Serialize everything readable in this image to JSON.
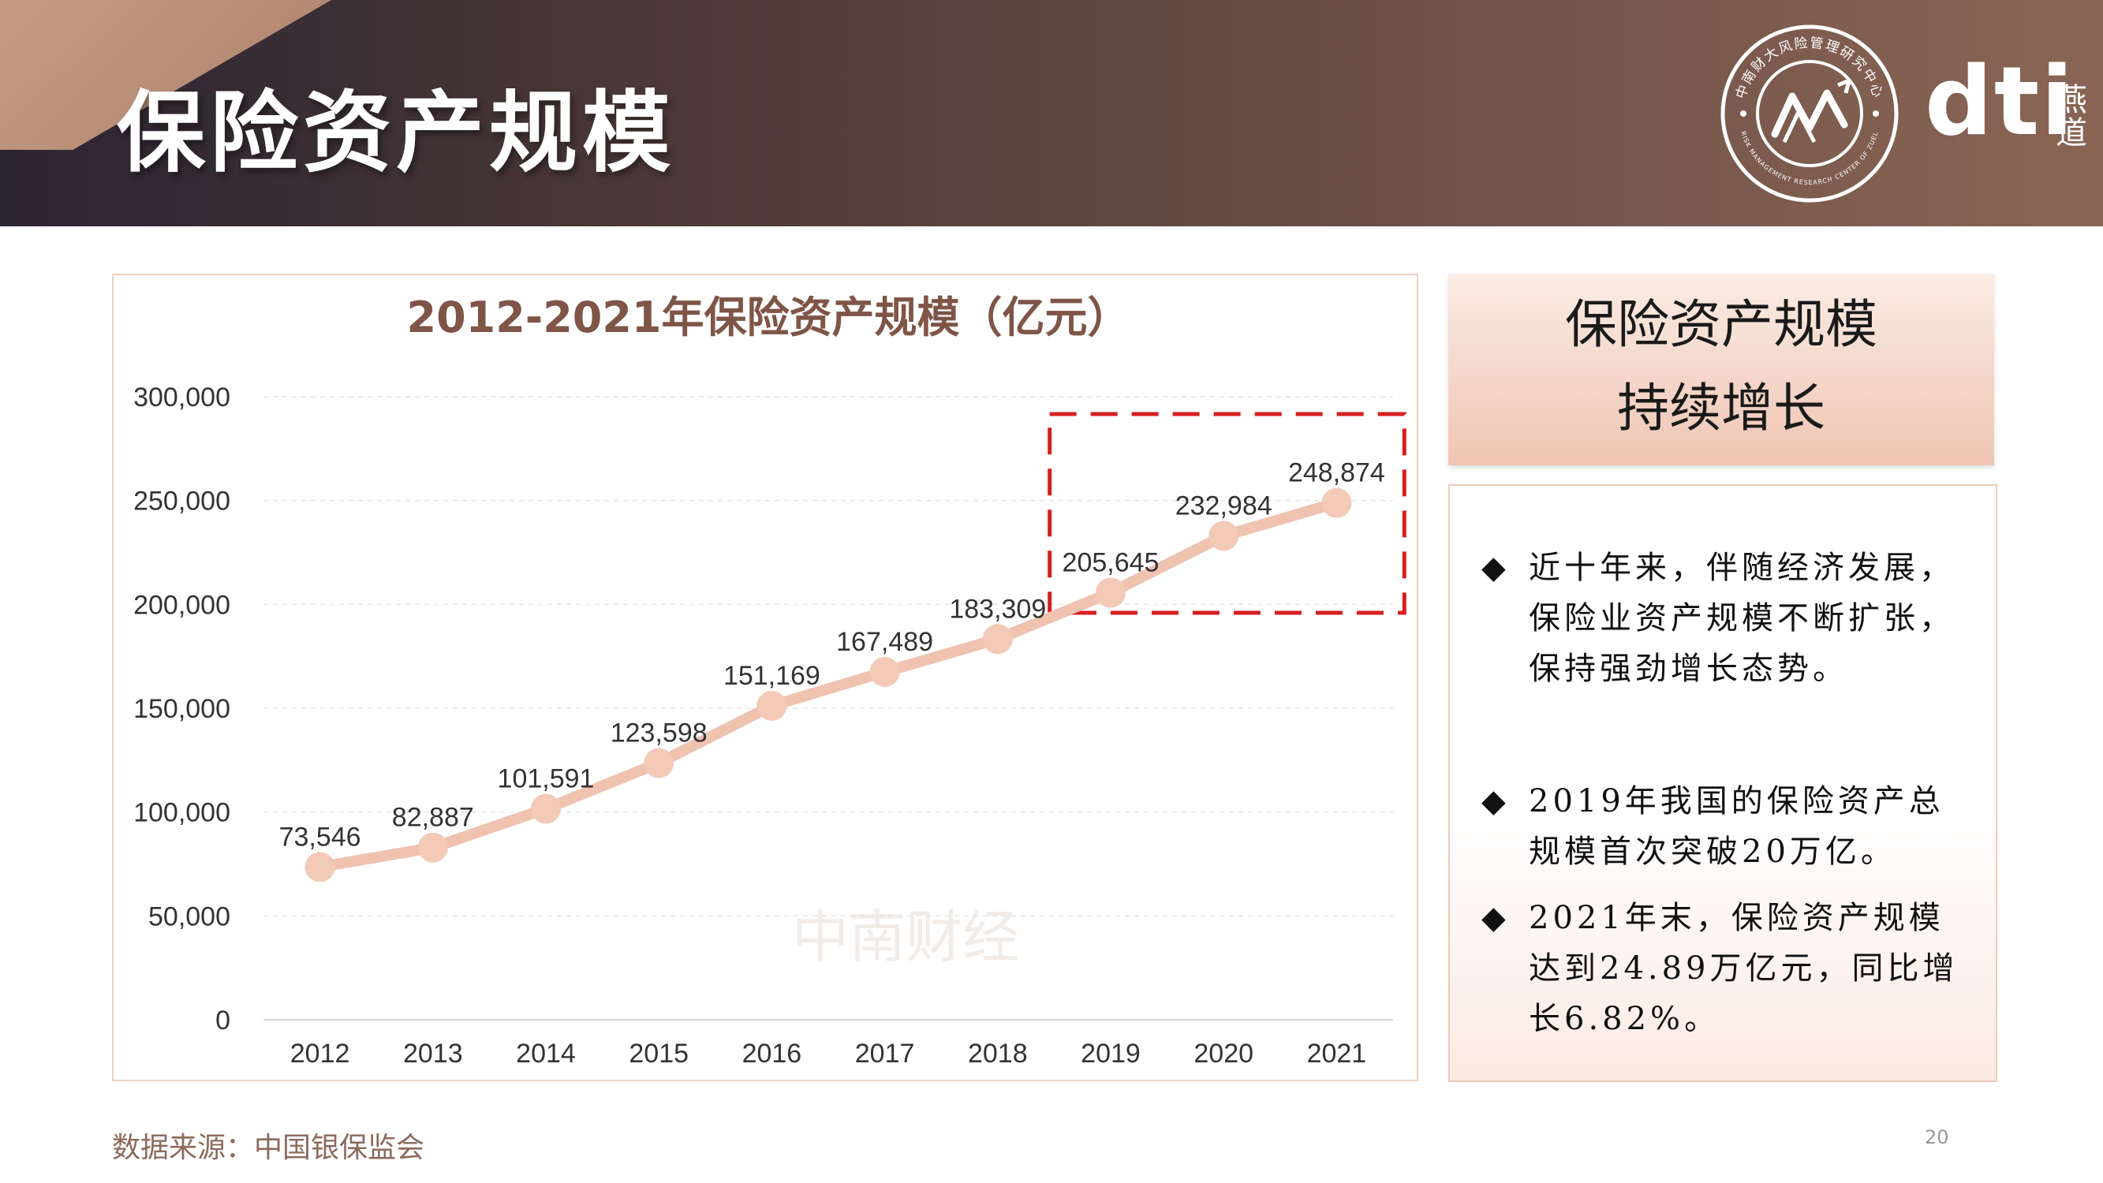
{
  "header": {
    "title": "保险资产规模",
    "brand": "dti",
    "brand_cn": "燕道",
    "seal_text": "中南财大风险管理研究中心",
    "seal_text_en": "RISK MANAGEMENT RESEARCH CENTER OF ZUEL"
  },
  "colors": {
    "line": "#f0c2b0",
    "marker": "#f3c9b8",
    "highlight_box": "#d81e1e",
    "title_text": "#7f5547",
    "header_dark": "#2b2431",
    "header_warm": "#8a6555"
  },
  "chart_data": {
    "type": "line",
    "title": "2012-2021年保险资产规模（亿元）",
    "categories": [
      "2012",
      "2013",
      "2014",
      "2015",
      "2016",
      "2017",
      "2018",
      "2019",
      "2020",
      "2021"
    ],
    "values": [
      73546,
      82887,
      101591,
      123598,
      151169,
      167489,
      183309,
      205645,
      232984,
      248874
    ],
    "value_labels": [
      "73,546",
      "82,887",
      "101,591",
      "123,598",
      "151,169",
      "167,489",
      "183,309",
      "205,645",
      "232,984",
      "248,874"
    ],
    "yticks": [
      "0",
      "50,000",
      "100,000",
      "150,000",
      "200,000",
      "250,000",
      "300,000"
    ],
    "ylim": [
      0,
      300000
    ],
    "grid": true,
    "legend": "none",
    "highlight_range": [
      "2019",
      "2021"
    ],
    "watermark": "中南财经"
  },
  "sidebar": {
    "heading_line1": "保险资产规模",
    "heading_line2": "持续增长",
    "bullets": [
      "近十年来，伴随经济发展，保险业资产规模不断扩张，保持强劲增长态势。",
      "2019年我国的保险资产总规模首次突破20万亿。",
      "2021年末，保险资产规模达到24.89万亿元，同比增长6.82%。"
    ]
  },
  "footer": {
    "source": "数据来源：中国银保监会",
    "page_number": "20"
  }
}
